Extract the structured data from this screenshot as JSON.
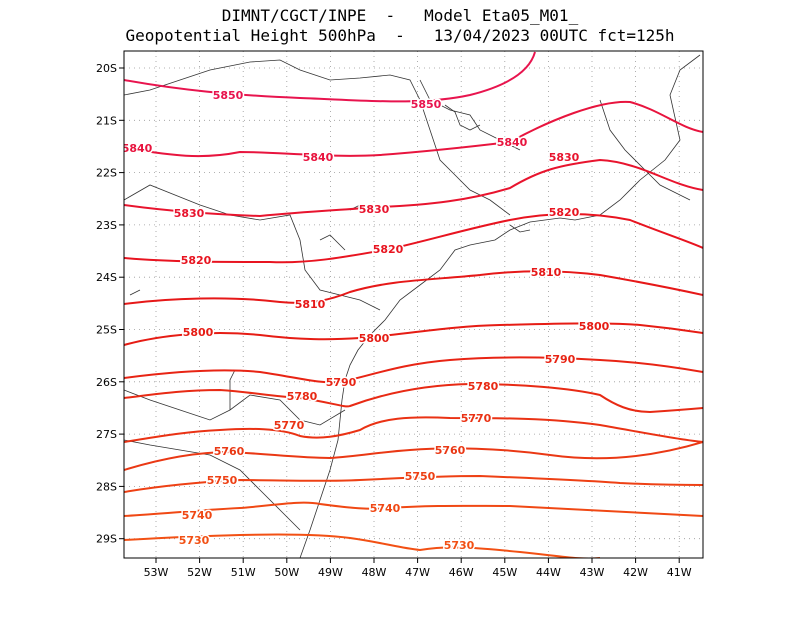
{
  "title_line1": "DIMNT/CGCT/INPE  -   Model Eta05_M01_",
  "title_line2": "Geopotential Height 500hPa  -   13/04/2023 00UTC fct=125h",
  "map": {
    "lon_range": [
      -53.6,
      -40.5
    ],
    "lat_range": [
      -29.4,
      -19.6
    ],
    "lat_ticks": [
      "20S",
      "21S",
      "22S",
      "23S",
      "24S",
      "25S",
      "26S",
      "27S",
      "28S",
      "29S"
    ],
    "lon_ticks": [
      "53W",
      "52W",
      "51W",
      "50W",
      "49W",
      "48W",
      "47W",
      "46W",
      "45W",
      "44W",
      "43W",
      "42W",
      "41W"
    ],
    "grid": "dotted"
  },
  "contours": [
    {
      "value": "5850",
      "color": "#e8144e"
    },
    {
      "value": "5840",
      "color": "#e8143e"
    },
    {
      "value": "5830",
      "color": "#e8142e"
    },
    {
      "value": "5820",
      "color": "#e81420"
    },
    {
      "value": "5810",
      "color": "#e61818"
    },
    {
      "value": "5800",
      "color": "#e61c14"
    },
    {
      "value": "5790",
      "color": "#e82414"
    },
    {
      "value": "5780",
      "color": "#e82a14"
    },
    {
      "value": "5770",
      "color": "#ea3214"
    },
    {
      "value": "5760",
      "color": "#ea3814"
    },
    {
      "value": "5750",
      "color": "#ee4014"
    },
    {
      "value": "5740",
      "color": "#f04814"
    },
    {
      "value": "5730",
      "color": "#f25014"
    }
  ]
}
